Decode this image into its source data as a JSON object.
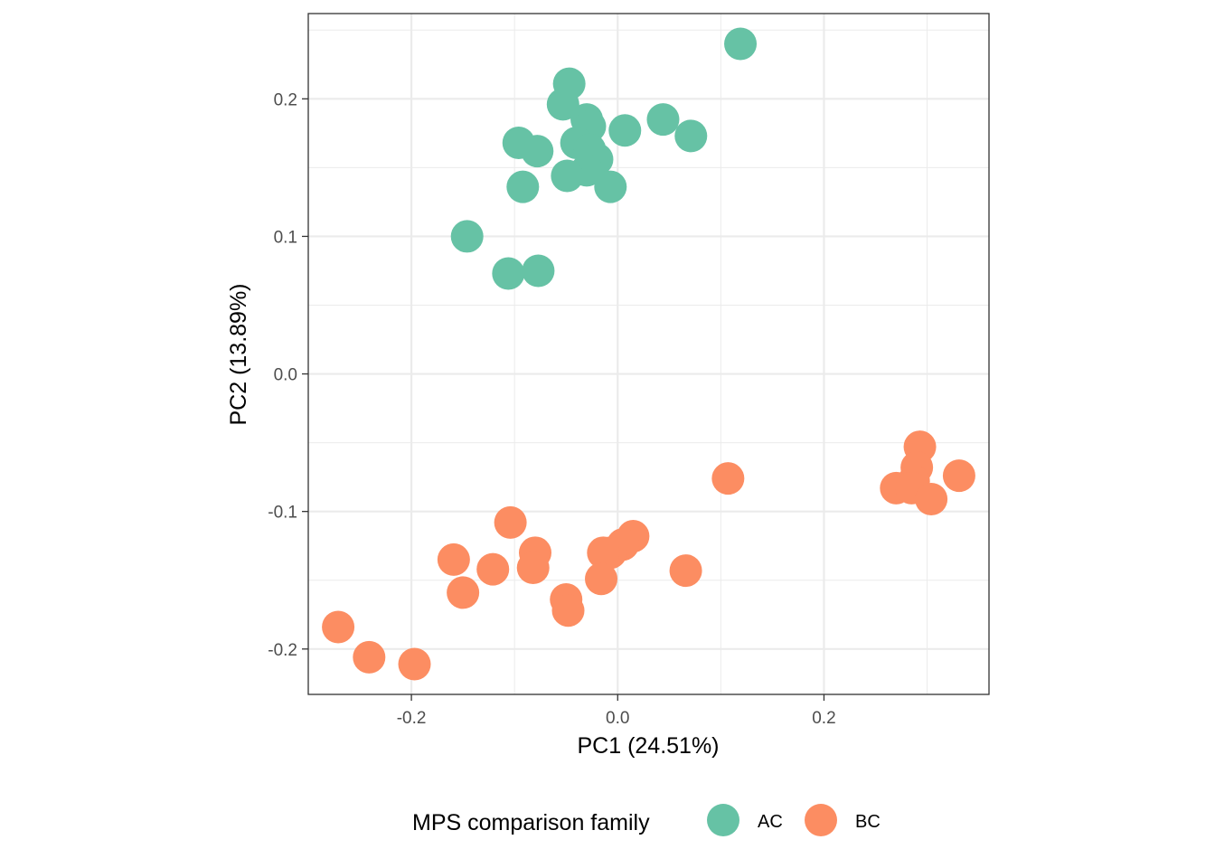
{
  "chart_data": {
    "type": "scatter",
    "xlabel": "PC1 (24.51%)",
    "ylabel": "PC2 (13.89%)",
    "xlim": [
      -0.3,
      0.36
    ],
    "ylim": [
      -0.233,
      0.262
    ],
    "x_ticks": [
      -0.2,
      0.0,
      0.2
    ],
    "x_tick_labels": [
      "-0.2",
      "0.0",
      "0.2"
    ],
    "y_ticks": [
      -0.2,
      -0.1,
      0.0,
      0.1,
      0.2
    ],
    "y_tick_labels": [
      "-0.2",
      "-0.1",
      "0.0",
      "0.1",
      "0.2"
    ],
    "grid": true,
    "legend": {
      "title": "MPS comparison family",
      "position": "bottom"
    },
    "series": [
      {
        "name": "AC",
        "color": "#66c2a5",
        "points": [
          [
            0.119,
            0.24
          ],
          [
            -0.047,
            0.211
          ],
          [
            -0.053,
            0.196
          ],
          [
            -0.03,
            0.185
          ],
          [
            -0.027,
            0.18
          ],
          [
            0.007,
            0.177
          ],
          [
            0.044,
            0.185
          ],
          [
            0.071,
            0.173
          ],
          [
            -0.096,
            0.168
          ],
          [
            -0.078,
            0.162
          ],
          [
            -0.04,
            0.168
          ],
          [
            -0.027,
            0.163
          ],
          [
            -0.02,
            0.156
          ],
          [
            -0.03,
            0.148
          ],
          [
            -0.049,
            0.144
          ],
          [
            -0.092,
            0.136
          ],
          [
            -0.007,
            0.136
          ],
          [
            -0.146,
            0.1
          ],
          [
            -0.106,
            0.073
          ],
          [
            -0.077,
            0.075
          ]
        ]
      },
      {
        "name": "BC",
        "color": "#fc8d62",
        "points": [
          [
            0.293,
            -0.053
          ],
          [
            0.29,
            -0.068
          ],
          [
            0.287,
            -0.078
          ],
          [
            0.27,
            -0.083
          ],
          [
            0.285,
            -0.083
          ],
          [
            0.304,
            -0.091
          ],
          [
            0.331,
            -0.074
          ],
          [
            0.107,
            -0.076
          ],
          [
            -0.104,
            -0.108
          ],
          [
            -0.08,
            -0.13
          ],
          [
            -0.082,
            -0.141
          ],
          [
            -0.159,
            -0.135
          ],
          [
            -0.121,
            -0.142
          ],
          [
            -0.15,
            -0.159
          ],
          [
            0.015,
            -0.118
          ],
          [
            0.005,
            -0.124
          ],
          [
            -0.007,
            -0.13
          ],
          [
            -0.014,
            -0.13
          ],
          [
            -0.016,
            -0.149
          ],
          [
            0.066,
            -0.143
          ],
          [
            -0.05,
            -0.164
          ],
          [
            -0.048,
            -0.172
          ],
          [
            -0.271,
            -0.184
          ],
          [
            -0.241,
            -0.206
          ],
          [
            -0.197,
            -0.211
          ]
        ]
      }
    ]
  }
}
